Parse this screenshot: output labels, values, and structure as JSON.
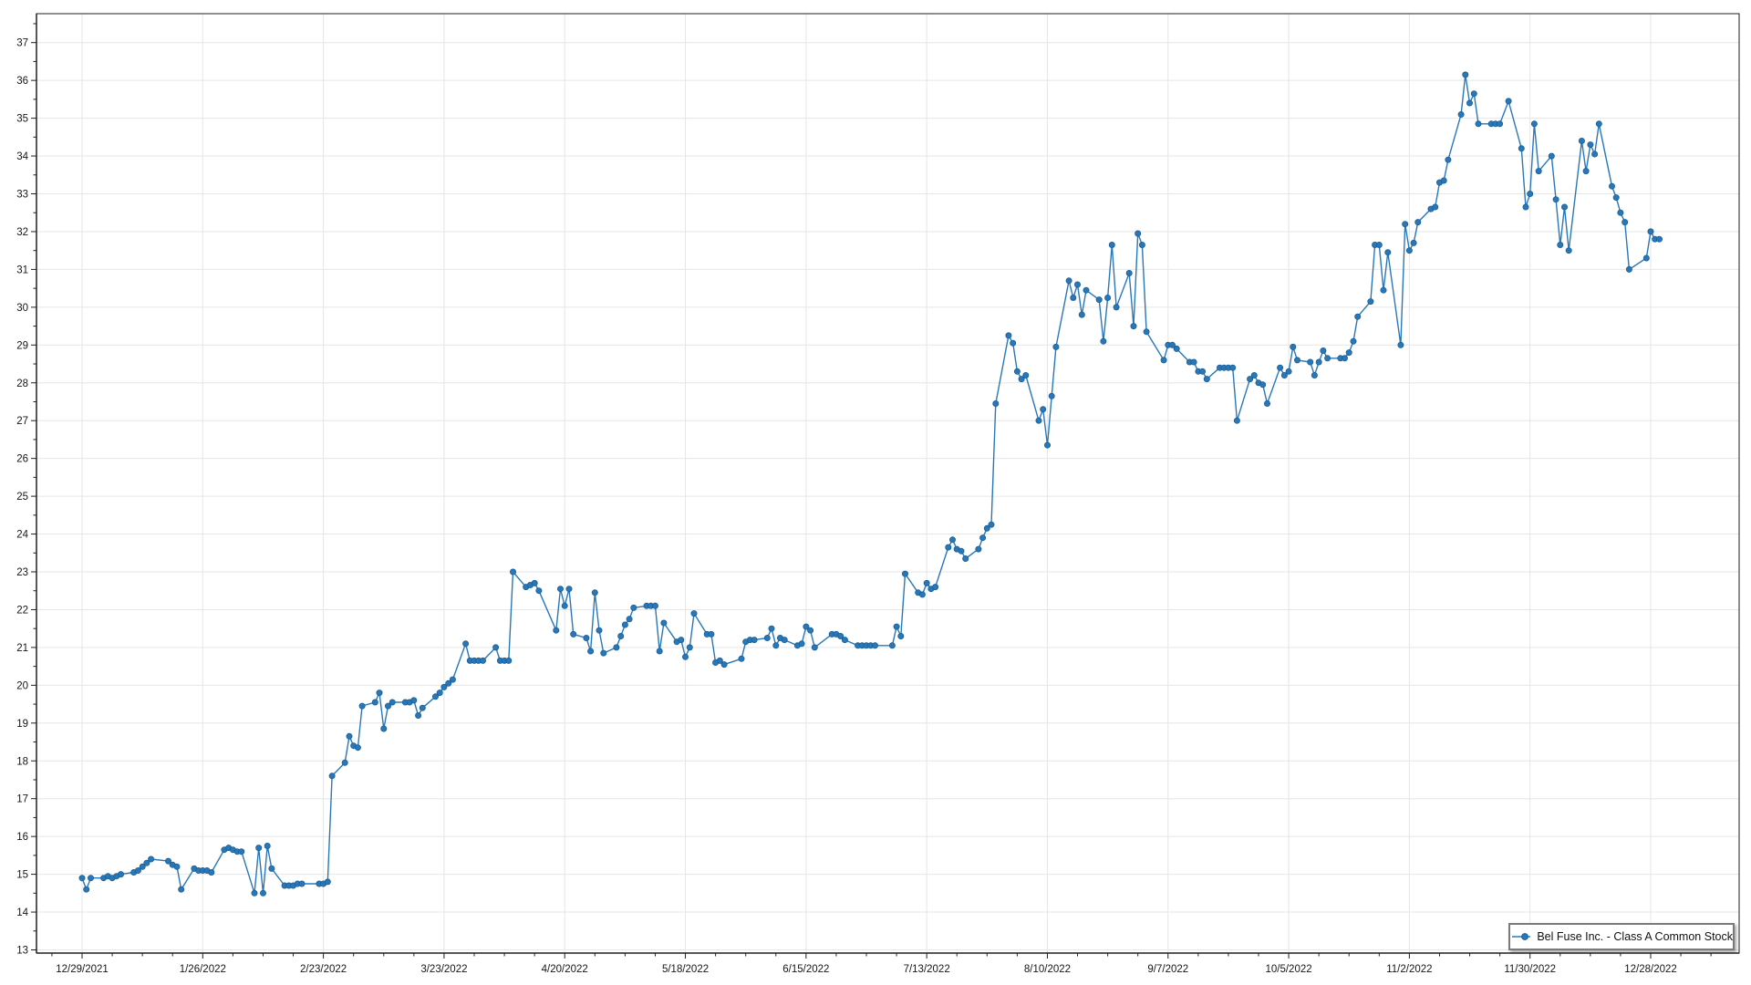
{
  "chart_data": {
    "type": "line",
    "title": "",
    "xlabel": "",
    "ylabel": "",
    "grid": true,
    "legend_position": "bottom-right",
    "ylim": [
      12.9,
      37.8
    ],
    "y_ticks": [
      13,
      14,
      15,
      16,
      17,
      18,
      19,
      20,
      21,
      22,
      23,
      24,
      25,
      26,
      27,
      28,
      29,
      30,
      31,
      32,
      33,
      34,
      35,
      36,
      37
    ],
    "x_tick_labels": [
      "12/29/2021",
      "1/26/2022",
      "2/23/2022",
      "3/23/2022",
      "4/20/2022",
      "5/18/2022",
      "6/15/2022",
      "7/13/2022",
      "8/10/2022",
      "9/7/2022",
      "10/5/2022",
      "11/2/2022",
      "11/30/2022",
      "12/28/2022"
    ],
    "series": [
      {
        "name": "Bel Fuse Inc. - Class A Common Stock",
        "color": "#2878b9",
        "marker_stroke": "#1b5e94",
        "points": [
          [
            "12/29/2021",
            14.9
          ],
          [
            "12/30/2021",
            14.6
          ],
          [
            "12/31/2021",
            14.9
          ],
          [
            "1/3/2022",
            14.9
          ],
          [
            "1/4/2022",
            14.95
          ],
          [
            "1/5/2022",
            14.9
          ],
          [
            "1/6/2022",
            14.95
          ],
          [
            "1/7/2022",
            15.0
          ],
          [
            "1/10/2022",
            15.05
          ],
          [
            "1/11/2022",
            15.1
          ],
          [
            "1/12/2022",
            15.2
          ],
          [
            "1/13/2022",
            15.3
          ],
          [
            "1/14/2022",
            15.4
          ],
          [
            "1/18/2022",
            15.35
          ],
          [
            "1/19/2022",
            15.25
          ],
          [
            "1/20/2022",
            15.2
          ],
          [
            "1/21/2022",
            14.6
          ],
          [
            "1/24/2022",
            15.15
          ],
          [
            "1/25/2022",
            15.1
          ],
          [
            "1/26/2022",
            15.1
          ],
          [
            "1/27/2022",
            15.1
          ],
          [
            "1/28/2022",
            15.05
          ],
          [
            "1/31/2022",
            15.65
          ],
          [
            "2/1/2022",
            15.7
          ],
          [
            "2/2/2022",
            15.65
          ],
          [
            "2/3/2022",
            15.6
          ],
          [
            "2/4/2022",
            15.6
          ],
          [
            "2/7/2022",
            14.5
          ],
          [
            "2/8/2022",
            15.7
          ],
          [
            "2/9/2022",
            14.5
          ],
          [
            "2/10/2022",
            15.75
          ],
          [
            "2/11/2022",
            15.15
          ],
          [
            "2/14/2022",
            14.7
          ],
          [
            "2/15/2022",
            14.7
          ],
          [
            "2/16/2022",
            14.7
          ],
          [
            "2/17/2022",
            14.75
          ],
          [
            "2/18/2022",
            14.75
          ],
          [
            "2/22/2022",
            14.75
          ],
          [
            "2/23/2022",
            14.75
          ],
          [
            "2/24/2022",
            14.8
          ],
          [
            "2/25/2022",
            17.6
          ],
          [
            "2/28/2022",
            17.95
          ],
          [
            "3/1/2022",
            18.65
          ],
          [
            "3/2/2022",
            18.4
          ],
          [
            "3/3/2022",
            18.35
          ],
          [
            "3/4/2022",
            19.45
          ],
          [
            "3/7/2022",
            19.55
          ],
          [
            "3/8/2022",
            19.8
          ],
          [
            "3/9/2022",
            18.85
          ],
          [
            "3/10/2022",
            19.45
          ],
          [
            "3/11/2022",
            19.55
          ],
          [
            "3/14/2022",
            19.55
          ],
          [
            "3/15/2022",
            19.55
          ],
          [
            "3/16/2022",
            19.6
          ],
          [
            "3/17/2022",
            19.2
          ],
          [
            "3/18/2022",
            19.4
          ],
          [
            "3/21/2022",
            19.7
          ],
          [
            "3/22/2022",
            19.8
          ],
          [
            "3/23/2022",
            19.95
          ],
          [
            "3/24/2022",
            20.05
          ],
          [
            "3/25/2022",
            20.15
          ],
          [
            "3/28/2022",
            21.1
          ],
          [
            "3/29/2022",
            20.65
          ],
          [
            "3/30/2022",
            20.65
          ],
          [
            "3/31/2022",
            20.65
          ],
          [
            "4/1/2022",
            20.65
          ],
          [
            "4/4/2022",
            21.0
          ],
          [
            "4/5/2022",
            20.65
          ],
          [
            "4/6/2022",
            20.65
          ],
          [
            "4/7/2022",
            20.65
          ],
          [
            "4/8/2022",
            23.0
          ],
          [
            "4/11/2022",
            22.6
          ],
          [
            "4/12/2022",
            22.65
          ],
          [
            "4/13/2022",
            22.7
          ],
          [
            "4/14/2022",
            22.5
          ],
          [
            "4/18/2022",
            21.45
          ],
          [
            "4/19/2022",
            22.55
          ],
          [
            "4/20/2022",
            22.1
          ],
          [
            "4/21/2022",
            22.55
          ],
          [
            "4/22/2022",
            21.35
          ],
          [
            "4/25/2022",
            21.25
          ],
          [
            "4/26/2022",
            20.9
          ],
          [
            "4/27/2022",
            22.45
          ],
          [
            "4/28/2022",
            21.45
          ],
          [
            "4/29/2022",
            20.85
          ],
          [
            "5/2/2022",
            21.0
          ],
          [
            "5/3/2022",
            21.3
          ],
          [
            "5/4/2022",
            21.6
          ],
          [
            "5/5/2022",
            21.75
          ],
          [
            "5/6/2022",
            22.05
          ],
          [
            "5/9/2022",
            22.1
          ],
          [
            "5/10/2022",
            22.1
          ],
          [
            "5/11/2022",
            22.1
          ],
          [
            "5/12/2022",
            20.9
          ],
          [
            "5/13/2022",
            21.65
          ],
          [
            "5/16/2022",
            21.15
          ],
          [
            "5/17/2022",
            21.2
          ],
          [
            "5/18/2022",
            20.75
          ],
          [
            "5/19/2022",
            21.0
          ],
          [
            "5/20/2022",
            21.9
          ],
          [
            "5/23/2022",
            21.35
          ],
          [
            "5/24/2022",
            21.35
          ],
          [
            "5/25/2022",
            20.6
          ],
          [
            "5/26/2022",
            20.65
          ],
          [
            "5/27/2022",
            20.55
          ],
          [
            "5/31/2022",
            20.7
          ],
          [
            "6/1/2022",
            21.15
          ],
          [
            "6/2/2022",
            21.2
          ],
          [
            "6/3/2022",
            21.2
          ],
          [
            "6/6/2022",
            21.25
          ],
          [
            "6/7/2022",
            21.5
          ],
          [
            "6/8/2022",
            21.05
          ],
          [
            "6/9/2022",
            21.25
          ],
          [
            "6/10/2022",
            21.2
          ],
          [
            "6/13/2022",
            21.05
          ],
          [
            "6/14/2022",
            21.1
          ],
          [
            "6/15/2022",
            21.55
          ],
          [
            "6/16/2022",
            21.45
          ],
          [
            "6/17/2022",
            21.0
          ],
          [
            "6/21/2022",
            21.35
          ],
          [
            "6/22/2022",
            21.35
          ],
          [
            "6/23/2022",
            21.3
          ],
          [
            "6/24/2022",
            21.2
          ],
          [
            "6/27/2022",
            21.05
          ],
          [
            "6/28/2022",
            21.05
          ],
          [
            "6/29/2022",
            21.05
          ],
          [
            "6/30/2022",
            21.05
          ],
          [
            "7/1/2022",
            21.05
          ],
          [
            "7/5/2022",
            21.05
          ],
          [
            "7/6/2022",
            21.55
          ],
          [
            "7/7/2022",
            21.3
          ],
          [
            "7/8/2022",
            22.95
          ],
          [
            "7/11/2022",
            22.45
          ],
          [
            "7/12/2022",
            22.4
          ],
          [
            "7/13/2022",
            22.7
          ],
          [
            "7/14/2022",
            22.55
          ],
          [
            "7/15/2022",
            22.6
          ],
          [
            "7/18/2022",
            23.65
          ],
          [
            "7/19/2022",
            23.85
          ],
          [
            "7/20/2022",
            23.6
          ],
          [
            "7/21/2022",
            23.55
          ],
          [
            "7/22/2022",
            23.35
          ],
          [
            "7/25/2022",
            23.6
          ],
          [
            "7/26/2022",
            23.9
          ],
          [
            "7/27/2022",
            24.15
          ],
          [
            "7/28/2022",
            24.25
          ],
          [
            "7/29/2022",
            27.45
          ],
          [
            "8/1/2022",
            29.25
          ],
          [
            "8/2/2022",
            29.05
          ],
          [
            "8/3/2022",
            28.3
          ],
          [
            "8/4/2022",
            28.1
          ],
          [
            "8/5/2022",
            28.2
          ],
          [
            "8/8/2022",
            27.0
          ],
          [
            "8/9/2022",
            27.3
          ],
          [
            "8/10/2022",
            26.35
          ],
          [
            "8/11/2022",
            27.65
          ],
          [
            "8/12/2022",
            28.95
          ],
          [
            "8/15/2022",
            30.7
          ],
          [
            "8/16/2022",
            30.25
          ],
          [
            "8/17/2022",
            30.6
          ],
          [
            "8/18/2022",
            29.8
          ],
          [
            "8/19/2022",
            30.45
          ],
          [
            "8/22/2022",
            30.2
          ],
          [
            "8/23/2022",
            29.1
          ],
          [
            "8/24/2022",
            30.25
          ],
          [
            "8/25/2022",
            31.65
          ],
          [
            "8/26/2022",
            30.0
          ],
          [
            "8/29/2022",
            30.9
          ],
          [
            "8/30/2022",
            29.5
          ],
          [
            "8/31/2022",
            31.95
          ],
          [
            "9/1/2022",
            31.65
          ],
          [
            "9/2/2022",
            29.35
          ],
          [
            "9/6/2022",
            28.6
          ],
          [
            "9/7/2022",
            29.0
          ],
          [
            "9/8/2022",
            29.0
          ],
          [
            "9/9/2022",
            28.9
          ],
          [
            "9/12/2022",
            28.55
          ],
          [
            "9/13/2022",
            28.55
          ],
          [
            "9/14/2022",
            28.3
          ],
          [
            "9/15/2022",
            28.3
          ],
          [
            "9/16/2022",
            28.1
          ],
          [
            "9/19/2022",
            28.4
          ],
          [
            "9/20/2022",
            28.4
          ],
          [
            "9/21/2022",
            28.4
          ],
          [
            "9/22/2022",
            28.4
          ],
          [
            "9/23/2022",
            27.0
          ],
          [
            "9/26/2022",
            28.1
          ],
          [
            "9/27/2022",
            28.2
          ],
          [
            "9/28/2022",
            28.0
          ],
          [
            "9/29/2022",
            27.95
          ],
          [
            "9/30/2022",
            27.45
          ],
          [
            "10/3/2022",
            28.4
          ],
          [
            "10/4/2022",
            28.2
          ],
          [
            "10/5/2022",
            28.3
          ],
          [
            "10/6/2022",
            28.95
          ],
          [
            "10/7/2022",
            28.6
          ],
          [
            "10/10/2022",
            28.55
          ],
          [
            "10/11/2022",
            28.2
          ],
          [
            "10/12/2022",
            28.55
          ],
          [
            "10/13/2022",
            28.85
          ],
          [
            "10/14/2022",
            28.65
          ],
          [
            "10/17/2022",
            28.65
          ],
          [
            "10/18/2022",
            28.65
          ],
          [
            "10/19/2022",
            28.8
          ],
          [
            "10/20/2022",
            29.1
          ],
          [
            "10/21/2022",
            29.75
          ],
          [
            "10/24/2022",
            30.15
          ],
          [
            "10/25/2022",
            31.65
          ],
          [
            "10/26/2022",
            31.65
          ],
          [
            "10/27/2022",
            30.45
          ],
          [
            "10/28/2022",
            31.45
          ],
          [
            "10/31/2022",
            29.0
          ],
          [
            "11/1/2022",
            32.2
          ],
          [
            "11/2/2022",
            31.5
          ],
          [
            "11/3/2022",
            31.7
          ],
          [
            "11/4/2022",
            32.25
          ],
          [
            "11/7/2022",
            32.6
          ],
          [
            "11/8/2022",
            32.65
          ],
          [
            "11/9/2022",
            33.3
          ],
          [
            "11/10/2022",
            33.35
          ],
          [
            "11/11/2022",
            33.9
          ],
          [
            "11/14/2022",
            35.1
          ],
          [
            "11/15/2022",
            36.15
          ],
          [
            "11/16/2022",
            35.4
          ],
          [
            "11/17/2022",
            35.65
          ],
          [
            "11/18/2022",
            34.85
          ],
          [
            "11/21/2022",
            34.85
          ],
          [
            "11/22/2022",
            34.85
          ],
          [
            "11/23/2022",
            34.85
          ],
          [
            "11/25/2022",
            35.45
          ],
          [
            "11/28/2022",
            34.2
          ],
          [
            "11/29/2022",
            32.65
          ],
          [
            "11/30/2022",
            33.0
          ],
          [
            "12/1/2022",
            34.85
          ],
          [
            "12/2/2022",
            33.6
          ],
          [
            "12/5/2022",
            34.0
          ],
          [
            "12/6/2022",
            32.85
          ],
          [
            "12/7/2022",
            31.65
          ],
          [
            "12/8/2022",
            32.65
          ],
          [
            "12/9/2022",
            31.5
          ],
          [
            "12/12/2022",
            34.4
          ],
          [
            "12/13/2022",
            33.6
          ],
          [
            "12/14/2022",
            34.3
          ],
          [
            "12/15/2022",
            34.05
          ],
          [
            "12/16/2022",
            34.85
          ],
          [
            "12/19/2022",
            33.2
          ],
          [
            "12/20/2022",
            32.9
          ],
          [
            "12/21/2022",
            32.5
          ],
          [
            "12/22/2022",
            32.25
          ],
          [
            "12/23/2022",
            31.0
          ],
          [
            "12/27/2022",
            31.3
          ],
          [
            "12/28/2022",
            32.0
          ],
          [
            "12/29/2022",
            31.8
          ],
          [
            "12/30/2022",
            31.8
          ]
        ]
      }
    ],
    "colors": {
      "grid": "#e6e6e6",
      "axis": "#1f1f1f",
      "tick_label": "#161616",
      "background": "#ffffff"
    }
  },
  "legend": {
    "label": "Bel Fuse Inc. - Class A Common Stock"
  }
}
